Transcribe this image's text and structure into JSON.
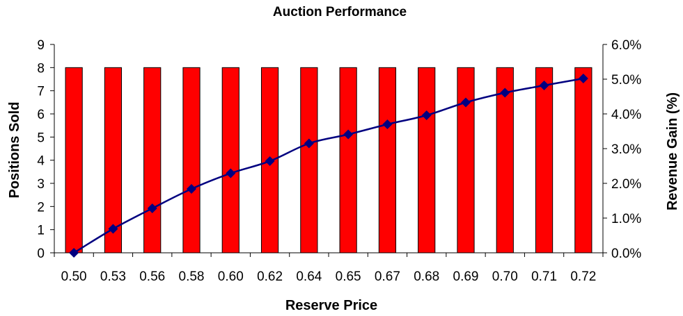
{
  "chart_data": {
    "type": "bar",
    "title": "Auction Performance",
    "xlabel": "Reserve Price",
    "ylabel": "Positions Sold",
    "y2label": "Revenue Gain (%)",
    "categories": [
      "0.50",
      "0.53",
      "0.56",
      "0.58",
      "0.60",
      "0.62",
      "0.64",
      "0.65",
      "0.67",
      "0.68",
      "0.69",
      "0.70",
      "0.71",
      "0.72"
    ],
    "ylim": [
      0,
      9
    ],
    "yticks": [
      "0",
      "1",
      "2",
      "3",
      "4",
      "5",
      "6",
      "7",
      "8",
      "9"
    ],
    "y2lim": [
      0,
      6
    ],
    "y2ticks": [
      "0.0%",
      "1.0%",
      "2.0%",
      "3.0%",
      "4.0%",
      "5.0%",
      "6.0%"
    ],
    "grid": false,
    "series": [
      {
        "kind": "bar",
        "axis": "left",
        "color": "#ff0000",
        "values": [
          8,
          8,
          8,
          8,
          8,
          8,
          8,
          8,
          8,
          8,
          8,
          8,
          8,
          8
        ]
      },
      {
        "kind": "line",
        "axis": "right",
        "color": "#000080",
        "marker": "diamond",
        "values": [
          0.0,
          0.69,
          1.28,
          1.84,
          2.29,
          2.64,
          3.15,
          3.41,
          3.7,
          3.96,
          4.33,
          4.61,
          4.82,
          5.02
        ]
      }
    ]
  }
}
